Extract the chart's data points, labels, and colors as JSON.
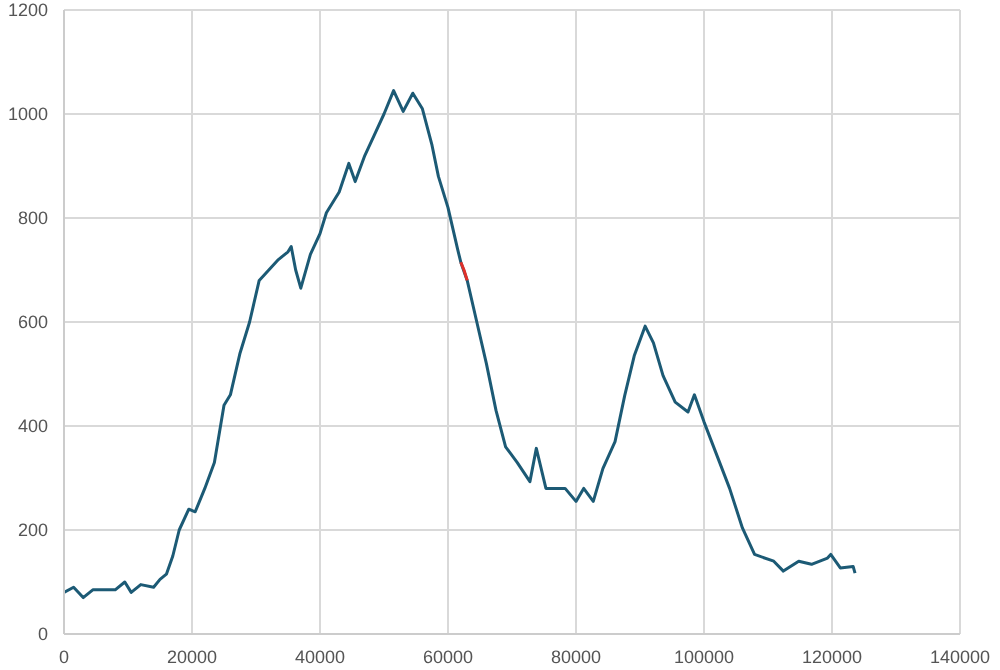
{
  "chart_data": {
    "type": "line",
    "xlim": [
      0,
      140000
    ],
    "xticks": [
      0,
      20000,
      40000,
      60000,
      80000,
      100000,
      120000,
      140000
    ],
    "ylim": [
      0,
      1200
    ],
    "yticks": [
      0,
      200,
      400,
      600,
      800,
      1000,
      1200
    ],
    "grid": true,
    "marker": "none",
    "line_style": "solid",
    "series": [
      {
        "color": "#1c5a75",
        "x": [
          0,
          1500,
          3000,
          4500,
          6000,
          8000,
          9500,
          10500,
          12000,
          14000,
          15000,
          16000,
          17000,
          18000,
          19500,
          20500,
          22000,
          23500,
          25000,
          26000,
          27500,
          29000,
          30500,
          32000,
          33500,
          35000,
          35500,
          36200,
          37000,
          38500,
          40000,
          41000,
          43000,
          44500,
          45500,
          47000,
          48500,
          50000,
          51500,
          53000,
          54500,
          56000,
          57500,
          58500,
          60000,
          61500,
          62000,
          63000,
          64500,
          66000,
          67500,
          69000,
          70800,
          72800,
          73800,
          75300,
          78300,
          80000,
          81200,
          82700,
          84200,
          86100,
          87600,
          89100,
          90800,
          92100,
          93600,
          95500,
          97500,
          98500,
          100000,
          102000,
          104000,
          106000,
          107900,
          110900,
          112400,
          114800,
          116800,
          119300,
          119800,
          121300,
          123300,
          123600
        ],
        "values": [
          80,
          90,
          70,
          85,
          85,
          85,
          100,
          80,
          95,
          90,
          105,
          115,
          150,
          200,
          240,
          235,
          280,
          330,
          440,
          460,
          540,
          600,
          680,
          700,
          720,
          735,
          745,
          700,
          665,
          730,
          770,
          810,
          850,
          905,
          870,
          920,
          960,
          1000,
          1045,
          1005,
          1040,
          1010,
          940,
          880,
          820,
          740,
          715,
          680,
          600,
          520,
          430,
          360,
          330,
          293,
          357,
          280,
          280,
          255,
          280,
          255,
          318,
          370,
          458,
          535,
          592,
          560,
          497,
          446,
          427,
          460,
          408,
          344,
          280,
          204,
          153,
          140,
          121,
          140,
          134,
          146,
          153,
          127,
          130,
          117
        ]
      },
      {
        "color": "#e0302a",
        "x": [
          62000,
          62500,
          63000
        ],
        "values": [
          715,
          700,
          680
        ]
      }
    ]
  }
}
